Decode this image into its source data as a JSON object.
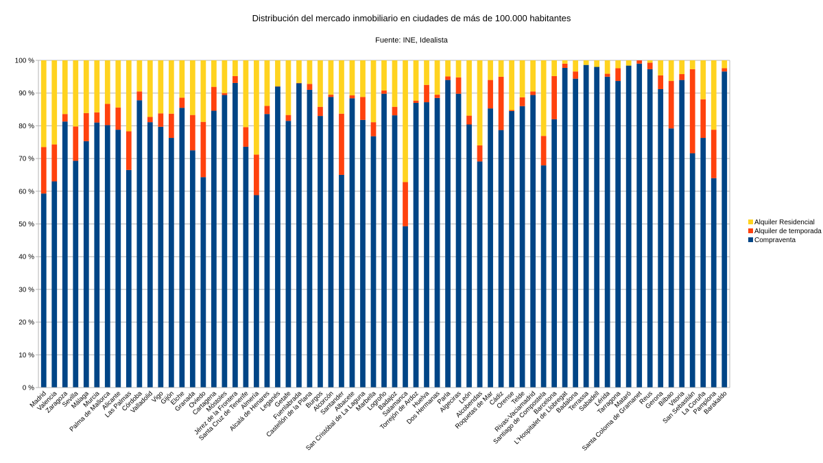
{
  "chart_data": {
    "type": "bar",
    "stacked": true,
    "title": "Distribución del mercado inmobiliario en ciudades de más de 100.000 habitantes",
    "subtitle": "Fuente: INE, Idealista",
    "ylim": [
      0,
      100
    ],
    "y_ticks": [
      "0 %",
      "10 %",
      "20 %",
      "30 %",
      "40 %",
      "50 %",
      "60 %",
      "70 %",
      "80 %",
      "90 %",
      "100 %"
    ],
    "grid": true,
    "legend_position": "right",
    "categories": [
      "Madrid",
      "Valencia",
      "Zaragoza",
      "Sevilla",
      "Málaga",
      "Murcia",
      "Palma de Mallorca",
      "Alicante",
      "Las Palmas",
      "Córdoba",
      "Valladolid",
      "Vigo",
      "Gijón",
      "Elche",
      "Granada",
      "Oviedo",
      "Cartagena",
      "Móstoles",
      "Jérez de la Frontera",
      "Santa Cruz de Tenerife",
      "Almería",
      "Alcalá de Henares",
      "Leganés",
      "Getafe",
      "Fuenlabrada",
      "Castellón de la Plana",
      "Burgos",
      "Alcorcón",
      "Santander",
      "Albacete",
      "San Cristóbal de La Laguna",
      "Marbella",
      "Logroño",
      "Badajoz",
      "Salamanca",
      "Torrejón de Ardoz",
      "Huelva",
      "Dos Hermanas",
      "Parla",
      "Algeciras",
      "León",
      "Alcobendas",
      "Roquetas de Mar",
      "Cádiz",
      "Orense",
      "Telde",
      "Rivas-Vaciamadrid",
      "Santiago de Compostela",
      "Barcelona",
      "L'Hospitalet de Llobregat",
      "Badalona",
      "Terrassa",
      "Sabadell",
      "Lérida",
      "Tarragona",
      "Mataró",
      "Santa Coloma de Gramanet",
      "Reus",
      "Gerona",
      "Bilbao",
      "Vitoria",
      "San Sebastián",
      "La Coruña",
      "Pamplona",
      "Barakaldo"
    ],
    "series": [
      {
        "name": "Compraventa",
        "color": "#004586",
        "values": [
          59.3,
          63.0,
          81.3,
          69.3,
          75.3,
          81.0,
          80.2,
          78.8,
          66.5,
          87.8,
          81.1,
          79.7,
          76.3,
          85.5,
          72.5,
          64.3,
          84.6,
          89.4,
          93.1,
          73.6,
          58.8,
          83.6,
          92.0,
          81.5,
          93.0,
          91.0,
          83.0,
          88.8,
          65.0,
          88.4,
          81.8,
          76.8,
          89.8,
          83.2,
          49.3,
          87.0,
          87.2,
          88.5,
          94.0,
          89.8,
          80.4,
          69.1,
          85.3,
          78.7,
          84.5,
          86.0,
          89.4,
          67.9,
          82.0,
          97.7,
          94.4,
          98.6,
          98.0,
          95.0,
          93.7,
          98.4,
          99.0,
          97.3,
          91.2,
          79.2,
          94.0,
          71.6,
          76.3,
          64.0,
          96.6
        ],
        "labels": []
      },
      {
        "name": "Alquiler de temporada",
        "color": "#ff420e",
        "values": [
          14.2,
          11.3,
          2.3,
          10.5,
          8.6,
          3.1,
          6.5,
          6.8,
          11.8,
          2.7,
          1.6,
          4.1,
          7.4,
          3.1,
          10.8,
          16.9,
          7.3,
          0.6,
          2.1,
          6.0,
          12.4,
          2.5,
          0.1,
          1.8,
          0.1,
          1.8,
          2.8,
          0.7,
          18.7,
          0.9,
          7.0,
          4.3,
          1.0,
          2.6,
          13.5,
          0.7,
          5.3,
          1.0,
          1.1,
          5.0,
          2.7,
          4.9,
          8.7,
          16.3,
          0.3,
          2.7,
          1.1,
          9.0,
          13.2,
          1.3,
          2.2,
          0.0,
          0.0,
          0.9,
          3.9,
          0.0,
          1.0,
          2.0,
          4.2,
          14.5,
          1.8,
          25.7,
          11.8,
          14.8,
          1.0
        ],
        "labels": []
      },
      {
        "name": "Alquiler Residencial",
        "color": "#ffd320",
        "values": [
          26.5,
          25.7,
          16.4,
          20.2,
          16.1,
          15.9,
          13.3,
          14.4,
          21.7,
          9.5,
          17.3,
          16.2,
          16.3,
          11.4,
          16.7,
          18.8,
          8.1,
          10.0,
          4.8,
          20.4,
          28.8,
          13.9,
          7.9,
          16.7,
          6.9,
          7.2,
          14.2,
          10.5,
          16.3,
          10.7,
          11.2,
          18.9,
          9.2,
          14.2,
          37.2,
          12.3,
          7.5,
          10.5,
          4.9,
          5.2,
          16.9,
          26.0,
          6.0,
          5.0,
          15.2,
          11.3,
          9.5,
          23.1,
          4.8,
          1.0,
          3.4,
          1.4,
          2.0,
          4.1,
          2.4,
          1.6,
          0.0,
          0.7,
          4.6,
          6.3,
          4.2,
          2.7,
          11.9,
          21.2,
          2.4
        ],
        "labels": []
      }
    ],
    "legend": [
      "Alquiler Residencial",
      "Alquiler de temporada",
      "Compraventa"
    ]
  }
}
